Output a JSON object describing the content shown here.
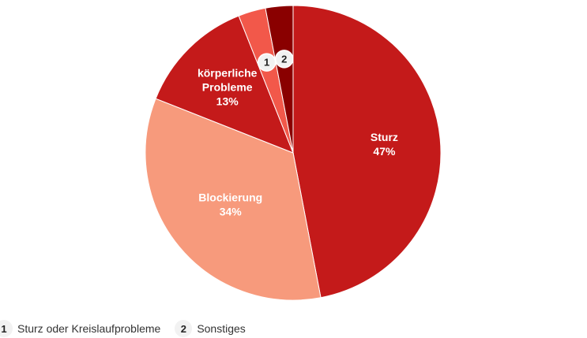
{
  "chart_data": {
    "type": "pie",
    "slices": [
      {
        "label": "Sturz",
        "value": 47,
        "value_label": "47%",
        "color": "#c41a1a"
      },
      {
        "label": "Blockierung",
        "value": 34,
        "value_label": "34%",
        "color": "#f79a7c"
      },
      {
        "label": "körperliche Probleme",
        "value": 13,
        "value_label": "13%",
        "color": "#c41a1a"
      },
      {
        "label": "Sturz oder Kreislaufprobleme",
        "value": 3,
        "value_label": "",
        "color": "#f2584a",
        "marker": "1"
      },
      {
        "label": "Sonstiges",
        "value": 3,
        "value_label": "",
        "color": "#8a0000",
        "marker": "2"
      }
    ],
    "legend": [
      {
        "marker": "1",
        "label": "Sturz oder Kreislaufprobleme"
      },
      {
        "marker": "2",
        "label": "Sonstiges"
      }
    ],
    "legend_position": "bottom-left"
  }
}
